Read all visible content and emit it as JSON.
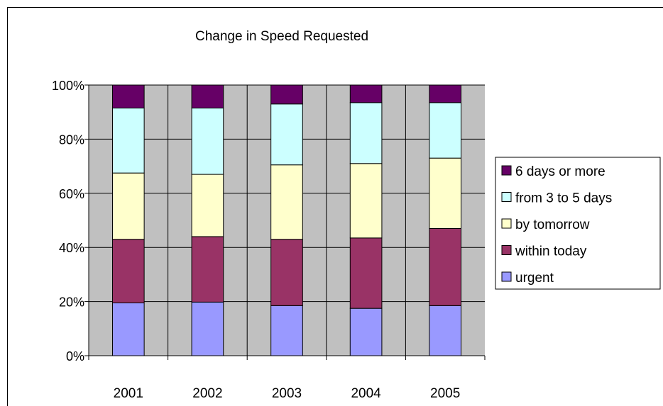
{
  "chart_data": {
    "type": "bar",
    "stacked": true,
    "percent_stacked": true,
    "title": "Change in Speed Requested",
    "xlabel": "",
    "ylabel": "",
    "ylim": [
      0,
      100
    ],
    "yticks": [
      "0%",
      "20%",
      "40%",
      "60%",
      "80%",
      "100%"
    ],
    "categories": [
      "2001",
      "2002",
      "2003",
      "2004",
      "2005"
    ],
    "grid": true,
    "legend_position": "right",
    "plot_background": "#c0c0c0",
    "series": [
      {
        "name": "urgent",
        "color": "#9999ff",
        "values": [
          19.5,
          19.8,
          18.5,
          17.5,
          18.5
        ]
      },
      {
        "name": "within today",
        "color": "#993366",
        "values": [
          23.5,
          24.2,
          24.5,
          26.0,
          28.5
        ]
      },
      {
        "name": "by tomorrow",
        "color": "#ffffcc",
        "values": [
          24.5,
          23.0,
          27.5,
          27.5,
          26.0
        ]
      },
      {
        "name": "from 3 to 5 days",
        "color": "#ccffff",
        "values": [
          24.0,
          24.5,
          22.5,
          22.5,
          20.5
        ]
      },
      {
        "name": "6 days or more",
        "color": "#660066",
        "values": [
          8.5,
          8.5,
          7.0,
          6.5,
          6.5
        ]
      }
    ]
  }
}
